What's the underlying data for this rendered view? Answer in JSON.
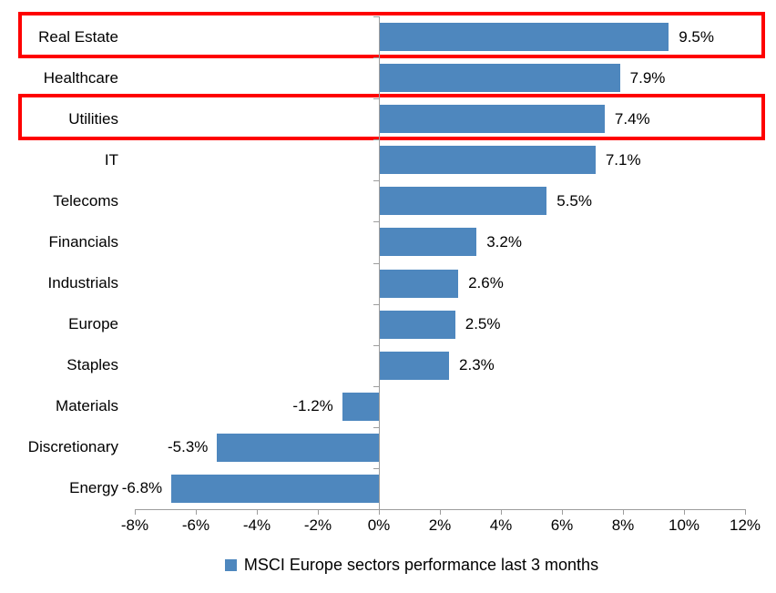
{
  "chart_data": {
    "type": "bar",
    "orientation": "horizontal",
    "categories": [
      "Real Estate",
      "Healthcare",
      "Utilities",
      "IT",
      "Telecoms",
      "Financials",
      "Industrials",
      "Europe",
      "Staples",
      "Materials",
      "Discretionary",
      "Energy"
    ],
    "values": [
      9.5,
      7.9,
      7.4,
      7.1,
      5.5,
      3.2,
      2.6,
      2.5,
      2.3,
      -1.2,
      -5.3,
      -6.8
    ],
    "value_labels": [
      "9.5%",
      "7.9%",
      "7.4%",
      "7.1%",
      "5.5%",
      "3.2%",
      "2.6%",
      "2.5%",
      "2.3%",
      "-1.2%",
      "-5.3%",
      "-6.8%"
    ],
    "x_axis": {
      "min": -8,
      "max": 12,
      "tick_values": [
        -8,
        -6,
        -4,
        -2,
        0,
        2,
        4,
        6,
        8,
        10,
        12
      ],
      "tick_labels": [
        "-8%",
        "-6%",
        "-4%",
        "-2%",
        "0%",
        "2%",
        "4%",
        "6%",
        "8%",
        "10%",
        "12%"
      ]
    },
    "legend": {
      "label": "MSCI Europe sectors performance last 3 months",
      "marker_color": "#4e87be"
    },
    "bar_color": "#4e87be",
    "highlighted_categories": [
      "Real Estate",
      "Utilities"
    ],
    "highlight_color": "#fe0000",
    "grid": false,
    "legend_position": "bottom"
  },
  "colors": {
    "bar": "#4e87be",
    "axis": "#9d9d9d",
    "highlight": "#fe0000",
    "text": "#000000",
    "background": "#ffffff"
  }
}
